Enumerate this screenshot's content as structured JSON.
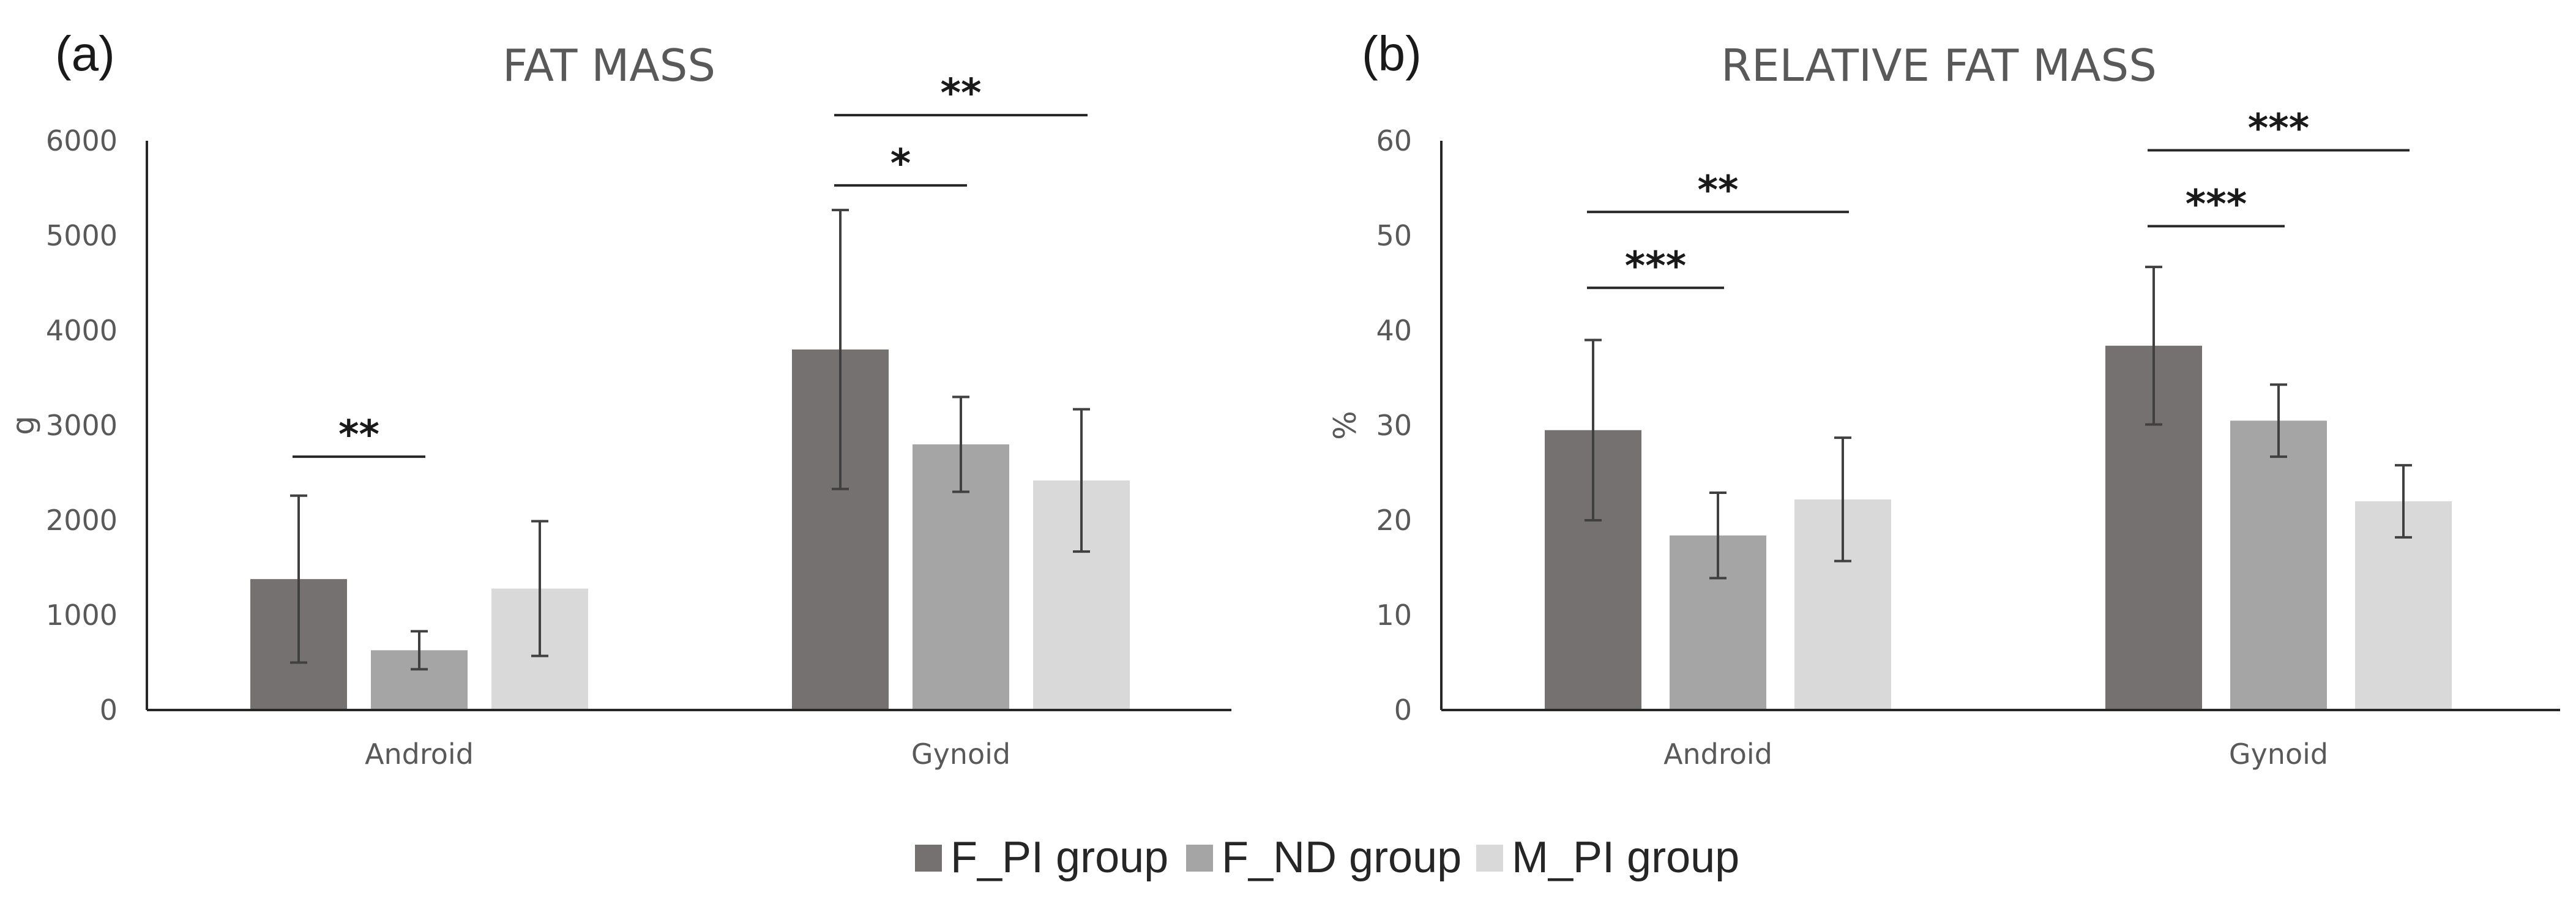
{
  "chart_data": [
    {
      "type": "bar",
      "panel_label": "(a)",
      "title": "FAT MASS",
      "xlabel": "",
      "ylabel": "g",
      "ylim": [
        0,
        6000
      ],
      "yticks": [
        0,
        1000,
        2000,
        3000,
        4000,
        5000,
        6000
      ],
      "categories": [
        "Android",
        "Gynoid"
      ],
      "series": [
        {
          "name": "F_PI group",
          "values": [
            1380,
            3800
          ],
          "errors": [
            880,
            1470
          ]
        },
        {
          "name": "F_ND group",
          "values": [
            630,
            2800
          ],
          "errors": [
            200,
            500
          ]
        },
        {
          "name": "M_PI group",
          "values": [
            1280,
            2420
          ],
          "errors": [
            710,
            750
          ]
        }
      ],
      "significance": [
        {
          "category": 0,
          "from": 0,
          "to": 1,
          "label": "**",
          "y": 2670
        },
        {
          "category": 1,
          "from": 0,
          "to": 1,
          "label": "*",
          "y": 5530
        },
        {
          "category": 1,
          "from": 0,
          "to": 2,
          "label": "**",
          "y": 6270
        }
      ]
    },
    {
      "type": "bar",
      "panel_label": "(b)",
      "title": "RELATIVE FAT MASS",
      "xlabel": "",
      "ylabel": "%",
      "ylim": [
        0,
        60
      ],
      "yticks": [
        0,
        10,
        20,
        30,
        40,
        50,
        60
      ],
      "categories": [
        "Android",
        "Gynoid"
      ],
      "series": [
        {
          "name": "F_PI group",
          "values": [
            29.5,
            38.4
          ],
          "errors": [
            9.5,
            8.3
          ]
        },
        {
          "name": "F_ND group",
          "values": [
            18.4,
            30.5
          ],
          "errors": [
            4.5,
            3.8
          ]
        },
        {
          "name": "M_PI group",
          "values": [
            22.2,
            22.0
          ],
          "errors": [
            6.5,
            3.8
          ]
        }
      ],
      "significance": [
        {
          "category": 0,
          "from": 0,
          "to": 1,
          "label": "***",
          "y": 44.5
        },
        {
          "category": 0,
          "from": 0,
          "to": 2,
          "label": "**",
          "y": 52.5
        },
        {
          "category": 1,
          "from": 0,
          "to": 1,
          "label": "***",
          "y": 51.0
        },
        {
          "category": 1,
          "from": 0,
          "to": 2,
          "label": "***",
          "y": 59.0
        }
      ]
    }
  ],
  "legend": {
    "position": "bottom-center",
    "items": [
      {
        "label": "F_PI group",
        "color": "#767171"
      },
      {
        "label": "F_ND group",
        "color": "#a5a5a5"
      },
      {
        "label": "M_PI group",
        "color": "#d9d9d9"
      }
    ]
  }
}
